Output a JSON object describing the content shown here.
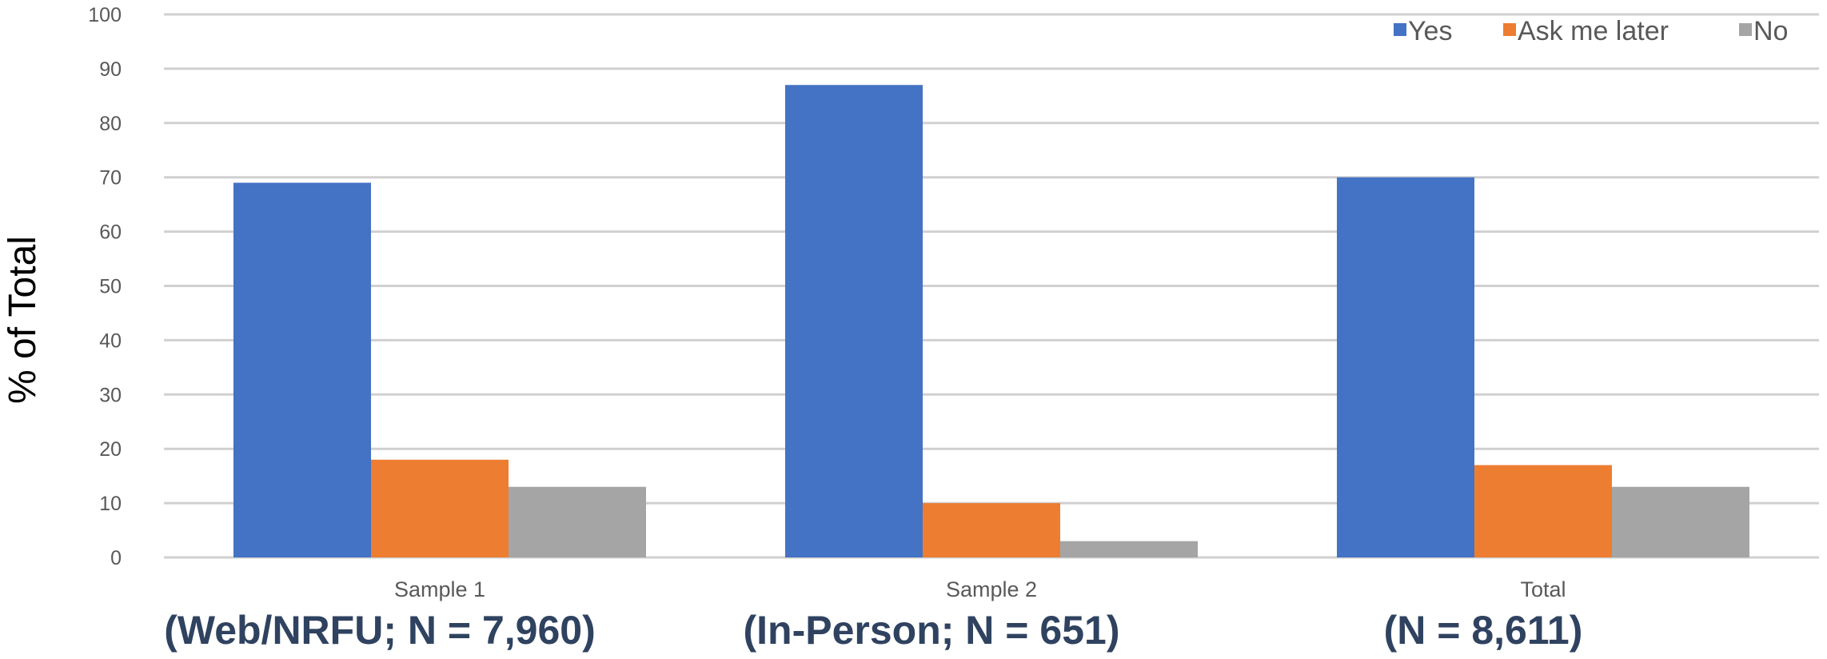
{
  "chart_data": {
    "type": "bar",
    "title": "",
    "xlabel": "",
    "ylabel": "% of Total",
    "ylim": [
      0,
      100
    ],
    "yticks": [
      0,
      10,
      20,
      30,
      40,
      50,
      60,
      70,
      80,
      90,
      100
    ],
    "grid": true,
    "legend_position": "top-right",
    "categories": [
      "Sample 1",
      "Sample  2",
      "Total"
    ],
    "category_sublabels": [
      "(Web/NRFU; N = 7,960)",
      "(In-Person; N = 651)",
      "(N = 8,611)"
    ],
    "series": [
      {
        "name": "Yes",
        "color": "#4472c4",
        "values": [
          69,
          87,
          70
        ]
      },
      {
        "name": "Ask me later",
        "color": "#ed7d31",
        "values": [
          18,
          10,
          17
        ]
      },
      {
        "name": "No",
        "color": "#a5a5a5",
        "values": [
          13,
          3,
          13
        ]
      }
    ]
  }
}
